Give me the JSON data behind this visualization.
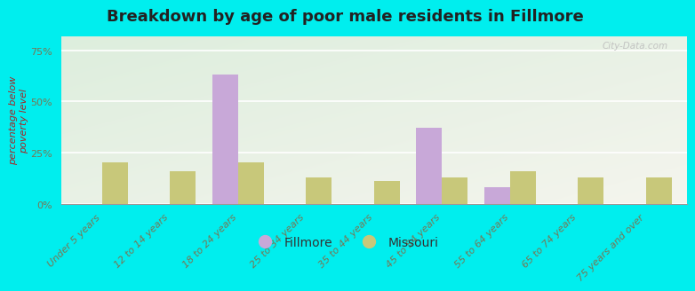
{
  "title": "Breakdown by age of poor male residents in Fillmore",
  "categories": [
    "Under 5 years",
    "12 to 14 years",
    "18 to 24 years",
    "25 to 34 years",
    "35 to 44 years",
    "45 to 54 years",
    "55 to 64 years",
    "65 to 74 years",
    "75 years and over"
  ],
  "fillmore": [
    0,
    0,
    63,
    0,
    0,
    37,
    8,
    0,
    0
  ],
  "missouri": [
    20,
    16,
    20,
    13,
    11,
    13,
    16,
    13,
    13
  ],
  "fillmore_color": "#c8a8d8",
  "missouri_color": "#c8c87a",
  "background_color": "#00eeee",
  "ylabel": "percentage below\npoverty level",
  "yticks": [
    0,
    25,
    50,
    75
  ],
  "ylim": [
    0,
    82
  ],
  "bar_width": 0.38,
  "title_fontsize": 13,
  "axis_label_fontsize": 8,
  "tick_fontsize": 8,
  "legend_fontsize": 10,
  "watermark": "City-Data.com"
}
